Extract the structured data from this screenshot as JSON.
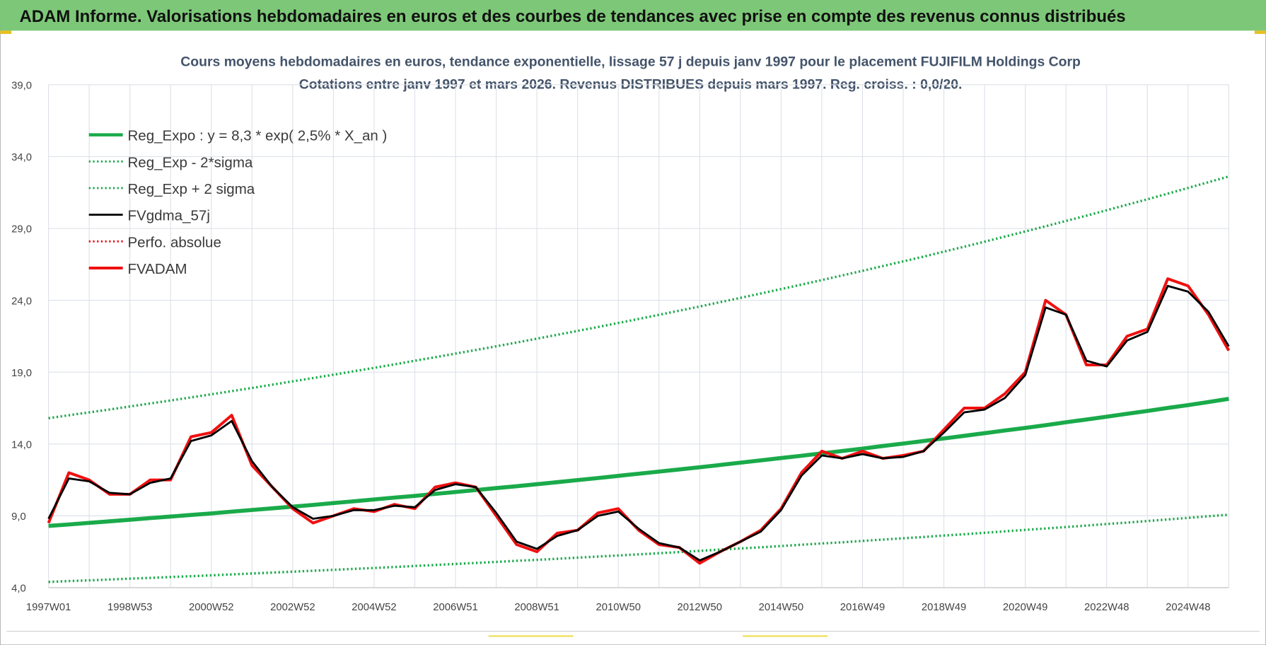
{
  "header": {
    "title": "ADAM Informe. Valorisations hebdomadaires en euros et des courbes de tendances avec prise en compte des revenus connus distribués"
  },
  "chart_data": {
    "type": "line",
    "title": "Cours moyens hebdomadaires en euros, tendance exponentielle, lissage 57 j depuis janv 1997 pour le placement FUJIFILM Holdings Corp",
    "subtitle": "Cotations entre janv 1997 et mars 2026. Revenus DISTRIBUES depuis mars 1997. Reg. croiss. : 0,0/20.",
    "categories": [
      "1997W01",
      null,
      null,
      null,
      "1998W53",
      null,
      null,
      null,
      "2000W52",
      null,
      null,
      null,
      "2002W52",
      null,
      null,
      null,
      "2004W52",
      null,
      null,
      null,
      "2006W51",
      null,
      null,
      null,
      "2008W51",
      null,
      null,
      null,
      "2010W50",
      null,
      null,
      null,
      "2012W50",
      null,
      null,
      null,
      "2014W50",
      null,
      null,
      null,
      "2016W49",
      null,
      null,
      null,
      "2018W49",
      null,
      null,
      null,
      "2020W49",
      null,
      null,
      null,
      "2022W48",
      null,
      null,
      null,
      "2024W48",
      null,
      null
    ],
    "ylim": [
      4,
      39
    ],
    "yticks": [
      {
        "value": 4,
        "label": "4,0"
      },
      {
        "value": 9,
        "label": "9,0"
      },
      {
        "value": 14,
        "label": "14,0"
      },
      {
        "value": 19,
        "label": "19,0"
      },
      {
        "value": 24,
        "label": "24,0"
      },
      {
        "value": 29,
        "label": "29,0"
      },
      {
        "value": 34,
        "label": "34,0"
      },
      {
        "value": 39,
        "label": "39,0"
      }
    ],
    "grid": true,
    "legend": "upper left",
    "series": [
      {
        "name": "Reg_Expo : y = 8,3 * exp( 2,5% *  X_an )",
        "color": "#1aaa4a",
        "style": "solid",
        "width": 5,
        "values": [
          8.3,
          8.4,
          8.51,
          8.62,
          8.73,
          8.84,
          8.95,
          9.06,
          9.17,
          9.29,
          9.41,
          9.52,
          9.64,
          9.76,
          9.89,
          10.01,
          10.14,
          10.27,
          10.39,
          10.53,
          10.66,
          10.79,
          10.93,
          11.06,
          11.2,
          11.34,
          11.49,
          11.63,
          11.78,
          11.93,
          12.08,
          12.23,
          12.38,
          12.54,
          12.7,
          12.86,
          13.02,
          13.18,
          13.35,
          13.51,
          13.68,
          13.86,
          14.03,
          14.21,
          14.39,
          14.57,
          14.75,
          14.94,
          15.12,
          15.31,
          15.51,
          15.7,
          15.9,
          16.1,
          16.3,
          16.51,
          16.71,
          16.92,
          17.14
        ]
      },
      {
        "name": "Reg_Exp - 2*sigma",
        "color": "#1aaa4a",
        "style": "dotted",
        "width": 3,
        "values": [
          4.4,
          4.46,
          4.51,
          4.57,
          4.63,
          4.68,
          4.74,
          4.8,
          4.86,
          4.92,
          4.99,
          5.05,
          5.11,
          5.18,
          5.24,
          5.31,
          5.37,
          5.44,
          5.51,
          5.58,
          5.65,
          5.72,
          5.79,
          5.87,
          5.94,
          6.01,
          6.09,
          6.17,
          6.24,
          6.32,
          6.4,
          6.48,
          6.56,
          6.65,
          6.73,
          6.81,
          6.9,
          6.99,
          7.08,
          7.16,
          7.25,
          7.35,
          7.44,
          7.53,
          7.63,
          7.72,
          7.82,
          7.92,
          8.02,
          8.12,
          8.22,
          8.32,
          8.43,
          8.53,
          8.64,
          8.75,
          8.86,
          8.97,
          9.08
        ]
      },
      {
        "name": "Reg_Exp + 2 sigma",
        "color": "#1aaa4a",
        "style": "dotted",
        "width": 3,
        "values": [
          15.8,
          16.0,
          16.2,
          16.4,
          16.61,
          16.82,
          17.03,
          17.24,
          17.46,
          17.68,
          17.9,
          18.13,
          18.36,
          18.59,
          18.82,
          19.06,
          19.3,
          19.54,
          19.79,
          20.04,
          20.29,
          20.54,
          20.8,
          21.06,
          21.33,
          21.6,
          21.87,
          22.14,
          22.42,
          22.7,
          22.99,
          23.28,
          23.57,
          23.87,
          24.17,
          24.47,
          24.78,
          25.09,
          25.41,
          25.73,
          26.05,
          26.38,
          26.71,
          27.04,
          27.39,
          27.73,
          28.08,
          28.43,
          28.79,
          29.15,
          29.52,
          29.89,
          30.27,
          30.65,
          31.03,
          31.42,
          31.82,
          32.22,
          32.62
        ]
      },
      {
        "name": "FVgdma_57j",
        "color": "#000000",
        "style": "solid",
        "width": 2.5,
        "values": [
          8.8,
          11.6,
          11.4,
          10.6,
          10.5,
          11.3,
          11.6,
          14.2,
          14.6,
          15.6,
          12.8,
          11.0,
          9.6,
          8.8,
          9.0,
          9.4,
          9.4,
          9.7,
          9.6,
          10.8,
          11.2,
          11.0,
          9.2,
          7.2,
          6.7,
          7.6,
          8.0,
          9.0,
          9.3,
          8.1,
          7.1,
          6.8,
          5.9,
          6.5,
          7.2,
          7.9,
          9.4,
          11.8,
          13.2,
          13.0,
          13.3,
          13.0,
          13.1,
          13.5,
          14.8,
          16.2,
          16.4,
          17.2,
          18.8,
          23.5,
          23.0,
          19.8,
          19.4,
          21.2,
          21.8,
          25.0,
          24.6,
          23.2,
          20.8
        ]
      },
      {
        "name": "Perfo. absolue",
        "color": "#e8141c",
        "style": "dotted",
        "width": 2.5
      },
      {
        "name": "FVADAM",
        "color": "#f01010",
        "style": "solid",
        "width": 3.5,
        "values": [
          8.5,
          12.0,
          11.5,
          10.5,
          10.5,
          11.5,
          11.5,
          14.5,
          14.8,
          16.0,
          12.5,
          11.0,
          9.5,
          8.5,
          9.0,
          9.5,
          9.3,
          9.8,
          9.5,
          11.0,
          11.3,
          11.0,
          9.0,
          7.0,
          6.5,
          7.8,
          8.0,
          9.2,
          9.5,
          8.0,
          7.0,
          6.8,
          5.7,
          6.5,
          7.2,
          8.0,
          9.5,
          12.0,
          13.5,
          13.0,
          13.5,
          13.0,
          13.2,
          13.5,
          15.0,
          16.5,
          16.5,
          17.5,
          19.0,
          24.0,
          23.0,
          19.5,
          19.5,
          21.5,
          22.0,
          25.5,
          25.0,
          23.0,
          20.5
        ]
      }
    ]
  }
}
